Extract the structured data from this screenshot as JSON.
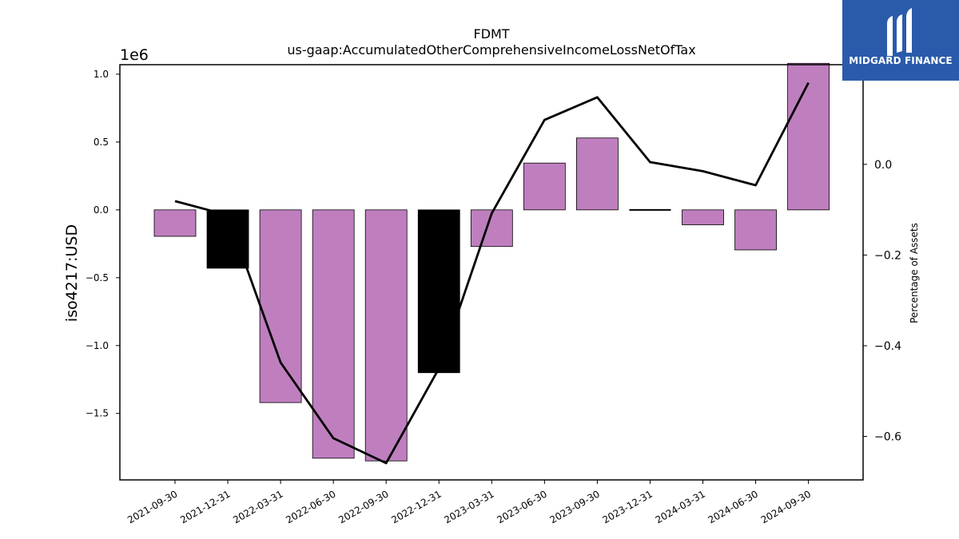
{
  "chart_data": {
    "type": "bar",
    "title": "FDMT",
    "subtitle": "us-gaap:AccumulatedOtherComprehensiveIncomeLossNetOfTax",
    "ylabel": "iso4217:USD",
    "y_offset_text": "1e6",
    "y2label": "Percentage of Assets",
    "categories": [
      "2021-09-30",
      "2021-12-31",
      "2022-03-31",
      "2022-06-30",
      "2022-09-30",
      "2022-12-31",
      "2023-03-31",
      "2023-06-30",
      "2023-09-30",
      "2023-12-31",
      "2024-03-31",
      "2024-06-30",
      "2024-09-30"
    ],
    "series": [
      {
        "type": "bar",
        "axis": "left",
        "values": [
          -195000,
          -430000,
          -1420000,
          -1830000,
          -1850000,
          -1200000,
          -270000,
          345000,
          530000,
          0,
          -110000,
          -295000,
          1080000
        ],
        "colors": [
          "#bf7fbf",
          "#000000",
          "#bf7fbf",
          "#bf7fbf",
          "#bf7fbf",
          "#000000",
          "#bf7fbf",
          "#bf7fbf",
          "#bf7fbf",
          "#000000",
          "#bf7fbf",
          "#bf7fbf",
          "#bf7fbf"
        ]
      },
      {
        "type": "line",
        "axis": "right",
        "color": "#000000",
        "values": [
          -0.081,
          -0.112,
          -0.437,
          -0.604,
          -0.659,
          -0.45,
          -0.108,
          0.098,
          0.148,
          0.005,
          -0.015,
          -0.046,
          0.18
        ]
      }
    ],
    "ylim": [
      -1.99,
      1.07
    ],
    "y_ticks": [
      1.0,
      0.5,
      0.0,
      -0.5,
      -1.0,
      -1.5
    ],
    "y_tick_labels": [
      "1.0",
      "0.5",
      "0.0",
      "−0.5",
      "−1.0",
      "−1.5"
    ],
    "y2lim": [
      -0.696,
      0.2199
    ],
    "y2_ticks": [
      0.0,
      -0.2,
      -0.4,
      -0.6
    ],
    "y2_tick_labels": [
      "0.0",
      "−0.2",
      "−0.4",
      "−0.6"
    ],
    "grid": false
  },
  "logo": {
    "text": "MIDGARD FINANCE",
    "bg_color": "#2a5bab"
  }
}
